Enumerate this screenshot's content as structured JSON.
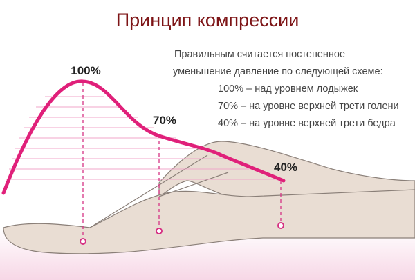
{
  "header": {
    "title": "Принцип компрессии"
  },
  "description": {
    "intro": [
      "Правильным считается постепенное",
      "уменьшение давление по следующей схеме:"
    ],
    "items": [
      "100% – над уровнем лодыжек",
      "70% – на уровне верхней трети голени",
      "40% – на уровне верхней трети бедра"
    ]
  },
  "markers": [
    {
      "label": "100%"
    },
    {
      "label": "70%"
    },
    {
      "label": "40%"
    }
  ]
}
